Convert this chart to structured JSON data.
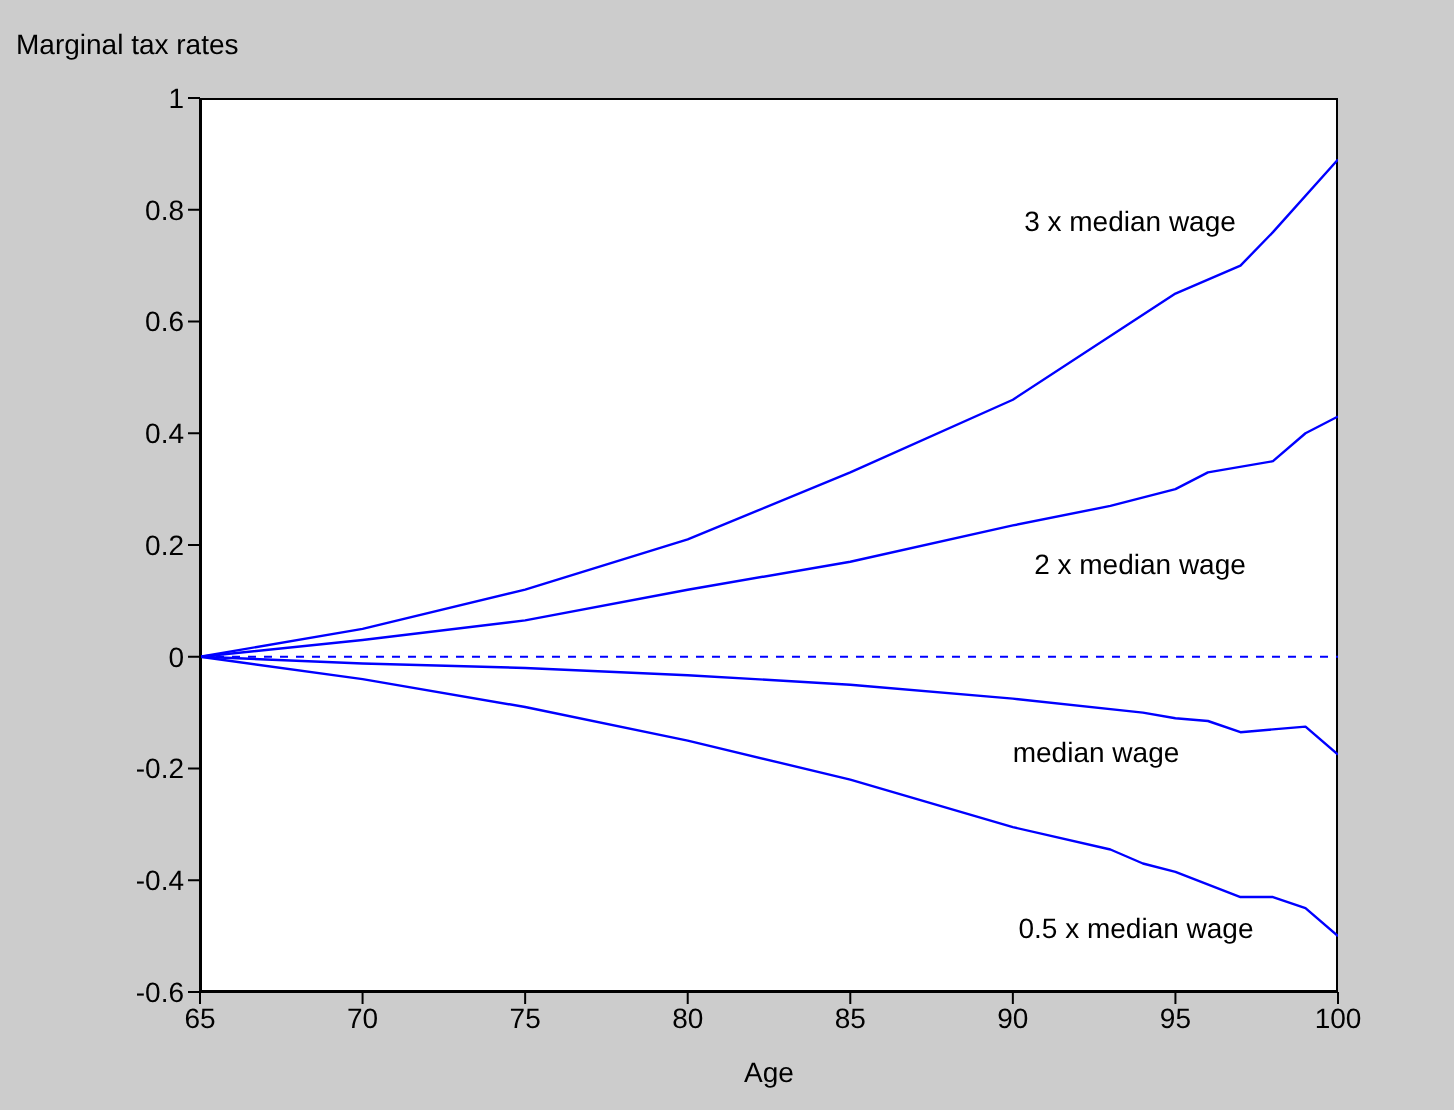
{
  "chart_data": {
    "type": "line",
    "ylabel": "Marginal tax rates",
    "xlabel": "Age",
    "xlim": [
      65,
      100
    ],
    "xticks": [
      65,
      70,
      75,
      80,
      85,
      90,
      95,
      100
    ],
    "ylim": [
      -0.6,
      1
    ],
    "yticks": [
      -0.6,
      -0.4,
      -0.2,
      0,
      0.2,
      0.4,
      0.6,
      0.8,
      1
    ],
    "marker": "none",
    "line_style": "solid",
    "ref_lines": [
      {
        "axis": "y",
        "value": 0,
        "color": "#0000ff",
        "line_style": "dashed"
      }
    ],
    "series": [
      {
        "name": "3 x median wage",
        "color": "#0000ff",
        "x": [
          65,
          70,
          75,
          80,
          85,
          90,
          95,
          97,
          98,
          100
        ],
        "values": [
          0,
          0.05,
          0.12,
          0.21,
          0.33,
          0.46,
          0.65,
          0.7,
          0.76,
          0.89
        ]
      },
      {
        "name": "2 x median wage",
        "color": "#0000ff",
        "x": [
          65,
          70,
          75,
          80,
          85,
          90,
          93,
          95,
          96,
          98,
          99,
          100
        ],
        "values": [
          0,
          0.03,
          0.065,
          0.12,
          0.17,
          0.235,
          0.27,
          0.3,
          0.33,
          0.35,
          0.4,
          0.43
        ]
      },
      {
        "name": "median wage",
        "color": "#0000ff",
        "x": [
          65,
          70,
          75,
          80,
          85,
          90,
          94,
          95,
          96,
          97,
          98,
          99,
          100
        ],
        "values": [
          0,
          -0.012,
          -0.02,
          -0.033,
          -0.05,
          -0.075,
          -0.1,
          -0.11,
          -0.115,
          -0.135,
          -0.13,
          -0.125,
          -0.175
        ]
      },
      {
        "name": "0.5 x median wage",
        "color": "#0000ff",
        "x": [
          65,
          70,
          75,
          80,
          85,
          90,
          93,
          94,
          95,
          97,
          98,
          99,
          100
        ],
        "values": [
          0,
          -0.04,
          -0.09,
          -0.15,
          -0.22,
          -0.305,
          -0.345,
          -0.37,
          -0.385,
          -0.43,
          -0.43,
          -0.45,
          -0.5
        ]
      }
    ]
  }
}
